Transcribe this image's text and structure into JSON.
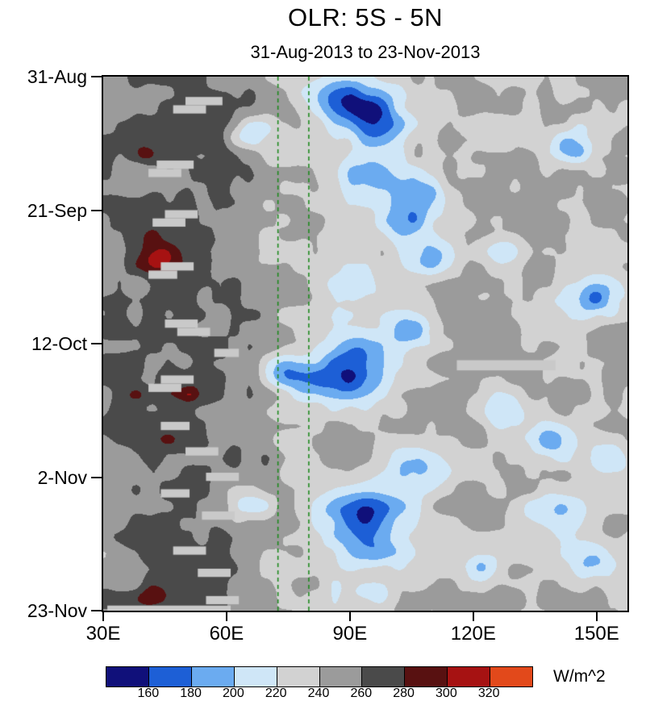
{
  "chart_data": {
    "type": "heatmap",
    "title": "OLR: 5S - 5N",
    "subtitle": "31-Aug-2013 to 23-Nov-2013",
    "xlabel": "",
    "ylabel": "",
    "x_axis": {
      "range": [
        30,
        157.5
      ],
      "ticks": [
        {
          "lon": 30,
          "label": "30E"
        },
        {
          "lon": 60,
          "label": "60E"
        },
        {
          "lon": 90,
          "label": "90E"
        },
        {
          "lon": 120,
          "label": "120E"
        },
        {
          "lon": 150,
          "label": "150E"
        }
      ]
    },
    "y_axis": {
      "range_days": [
        0,
        84
      ],
      "direction": "time-increases-downward",
      "ticks": [
        {
          "day": 0,
          "label": "31-Aug"
        },
        {
          "day": 21,
          "label": "21-Sep"
        },
        {
          "day": 42,
          "label": "12-Oct"
        },
        {
          "day": 63,
          "label": "2-Nov"
        },
        {
          "day": 84,
          "label": "23-Nov"
        }
      ]
    },
    "colorbar": {
      "units": "W/m^2",
      "levels": [
        160,
        180,
        200,
        220,
        240,
        260,
        280,
        300,
        320
      ],
      "colors": [
        "#10107a",
        "#1d5fd6",
        "#6babf0",
        "#cfe6f7",
        "#d2d2d2",
        "#9b9b9b",
        "#4a4a4a",
        "#581111",
        "#a61212",
        "#e2491b"
      ]
    },
    "reference_lines": {
      "style": "dashed",
      "color": "#1e8a1e",
      "x_values": [
        72.5,
        80
      ]
    },
    "field": {
      "units": "W/m^2",
      "missing_color": "#c9c9c9",
      "base_by_lon": [
        [
          30,
          254
        ],
        [
          36,
          260
        ],
        [
          44,
          265
        ],
        [
          52,
          266
        ],
        [
          60,
          260
        ],
        [
          66,
          250
        ],
        [
          72,
          243
        ],
        [
          80,
          238
        ],
        [
          88,
          234
        ],
        [
          96,
          233
        ],
        [
          104,
          237
        ],
        [
          112,
          243
        ],
        [
          120,
          245
        ],
        [
          128,
          243
        ],
        [
          136,
          241
        ],
        [
          144,
          239
        ],
        [
          152,
          241
        ],
        [
          158,
          243
        ]
      ],
      "noise": {
        "seed": 7,
        "amp_small": 10.5,
        "amp_large": 9.5
      },
      "convective_events": [
        [
          90,
          4,
          7,
          2.6,
          -78
        ],
        [
          97,
          8,
          5,
          2.2,
          -50
        ],
        [
          66,
          8.5,
          4,
          1.8,
          -46
        ],
        [
          144,
          11,
          4.5,
          2,
          -52
        ],
        [
          96,
          15.5,
          6,
          2.6,
          -58
        ],
        [
          108,
          19,
          5,
          2.2,
          -48
        ],
        [
          102,
          23,
          4.5,
          2,
          -45
        ],
        [
          111,
          28,
          5,
          2.2,
          -48
        ],
        [
          128,
          27.5,
          3.5,
          1.8,
          -33
        ],
        [
          149,
          34.5,
          5,
          2.6,
          -62
        ],
        [
          91,
          33.5,
          3.5,
          1.8,
          -29
        ],
        [
          105,
          40,
          4.5,
          2,
          -45
        ],
        [
          92,
          43,
          4.5,
          2.2,
          -48
        ],
        [
          87,
          47.5,
          8,
          2.8,
          -72
        ],
        [
          74,
          46.5,
          3.5,
          1.8,
          -37
        ],
        [
          127,
          53,
          5,
          2.2,
          -42
        ],
        [
          139,
          57,
          5,
          2.2,
          -48
        ],
        [
          108,
          61.5,
          6,
          2.6,
          -52
        ],
        [
          154,
          60.5,
          3.5,
          1.8,
          -39
        ],
        [
          93,
          69,
          7,
          2.8,
          -74
        ],
        [
          66,
          67.5,
          3.5,
          2,
          -44
        ],
        [
          139,
          68,
          6,
          2.2,
          -42
        ],
        [
          95,
          74.5,
          5,
          2.2,
          -48
        ],
        [
          122,
          77,
          3.5,
          1.8,
          -38
        ],
        [
          149,
          76,
          4.5,
          2.2,
          -44
        ],
        [
          96,
          81.5,
          3.5,
          1.5,
          -31
        ]
      ],
      "warm_spots": [
        [
          44,
          28.5,
          3.5,
          1.8,
          42
        ],
        [
          40,
          12,
          1.6,
          0.8,
          26
        ],
        [
          38,
          50,
          2,
          1,
          30
        ],
        [
          51,
          50,
          1.4,
          0.7,
          24
        ],
        [
          46,
          57,
          1.4,
          0.7,
          24
        ],
        [
          41,
          82,
          2.6,
          1.1,
          34
        ]
      ],
      "missing_segments": [
        [
          3.2,
          4.5,
          50,
          59
        ],
        [
          4.5,
          5.8,
          47,
          55
        ],
        [
          13.2,
          14.5,
          43,
          52
        ],
        [
          14.5,
          15.8,
          41,
          49
        ],
        [
          21.0,
          22.3,
          45,
          53
        ],
        [
          22.3,
          23.6,
          42,
          50
        ],
        [
          29.2,
          30.5,
          44,
          52
        ],
        [
          30.5,
          31.8,
          41,
          48
        ],
        [
          38.2,
          39.5,
          45,
          53
        ],
        [
          39.5,
          40.8,
          48,
          56
        ],
        [
          42.8,
          44.1,
          57,
          63
        ],
        [
          44.6,
          46.2,
          116,
          140
        ],
        [
          47.0,
          48.3,
          44,
          52
        ],
        [
          48.3,
          49.6,
          41,
          49
        ],
        [
          54.3,
          55.6,
          44,
          51
        ],
        [
          58.3,
          59.6,
          50,
          58
        ],
        [
          62.3,
          63.6,
          55,
          63
        ],
        [
          64.9,
          66.2,
          44,
          51
        ],
        [
          68.4,
          69.7,
          54,
          62
        ],
        [
          73.9,
          75.2,
          47,
          55
        ],
        [
          77.4,
          78.7,
          53,
          61
        ],
        [
          81.7,
          83.0,
          55,
          63
        ],
        [
          83.2,
          84.0,
          31,
          61
        ]
      ]
    }
  }
}
